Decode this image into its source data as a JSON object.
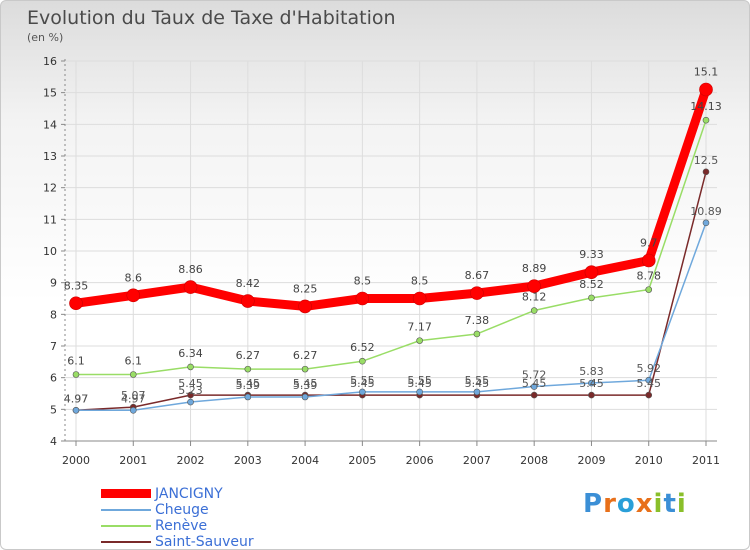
{
  "chart": {
    "title": "Evolution du Taux de Taxe d'Habitation",
    "subtitle": "(en %)"
  },
  "chart_data": {
    "type": "line",
    "title": "Evolution du Taux de Taxe d'Habitation",
    "ylabel": "(en %)",
    "xlabel": "",
    "ylim": [
      4,
      16
    ],
    "y_ticks": [
      4,
      5,
      6,
      7,
      8,
      9,
      10,
      11,
      12,
      13,
      14,
      15,
      16
    ],
    "categories": [
      "2000",
      "2001",
      "2002",
      "2003",
      "2004",
      "2005",
      "2006",
      "2007",
      "2008",
      "2009",
      "2010",
      "2011"
    ],
    "series": [
      {
        "name": "JANCIGNY",
        "color": "#ff0000",
        "values": [
          8.35,
          8.6,
          8.86,
          8.42,
          8.25,
          8.5,
          8.5,
          8.67,
          8.89,
          9.33,
          9.7,
          15.1
        ],
        "labels": [
          "8.35",
          "8.6",
          "8.86",
          "8.42",
          "8.25",
          "8.5",
          "8.5",
          "8.67",
          "8.89",
          "9.33",
          "9.7",
          "15.1"
        ]
      },
      {
        "name": "Cheuge",
        "color": "#6fa8dc",
        "values": [
          4.97,
          4.97,
          5.23,
          5.39,
          5.39,
          5.55,
          5.55,
          5.55,
          5.72,
          5.83,
          5.92,
          10.89
        ],
        "labels": [
          "4.97",
          "4.97",
          "5.23",
          "5.39",
          "5.39",
          "5.55",
          "5.55",
          "5.55",
          "5.72",
          "5.83",
          "5.92",
          "10.89"
        ]
      },
      {
        "name": "Renève",
        "color": "#99dd66",
        "values": [
          6.1,
          6.1,
          6.34,
          6.27,
          6.27,
          6.52,
          7.17,
          7.38,
          8.12,
          8.52,
          8.78,
          14.13
        ],
        "labels": [
          "6.1",
          "6.1",
          "6.34",
          "6.27",
          "6.27",
          "6.52",
          "7.17",
          "7.38",
          "8.12",
          "8.52",
          "8.78",
          "14.13"
        ]
      },
      {
        "name": "Saint-Sauveur",
        "color": "#7a2a2a",
        "values": [
          4.97,
          5.07,
          5.45,
          5.45,
          5.45,
          5.45,
          5.45,
          5.45,
          5.45,
          5.45,
          5.45,
          12.5
        ],
        "labels": [
          "4.97",
          "5.07",
          "5.45",
          "5.45",
          "5.45",
          "5.45",
          "5.45",
          "5.45",
          "5.45",
          "5.45",
          "5.45",
          "12.5"
        ]
      }
    ]
  },
  "legend": {
    "items": [
      "JANCIGNY",
      "Cheuge",
      "Renève",
      "Saint-Sauveur"
    ]
  },
  "logo": {
    "text": "Proxiti",
    "colors": [
      "#3b8fd6",
      "#e8701a",
      "#2a9fd8",
      "#e8701a",
      "#8abf2a",
      "#3b8fd6",
      "#8abf2a"
    ]
  }
}
